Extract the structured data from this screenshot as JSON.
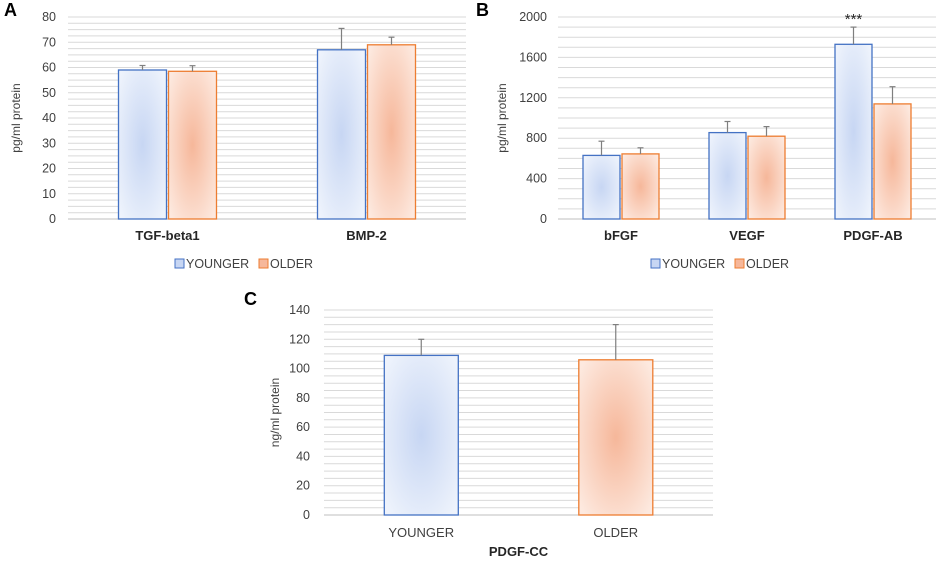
{
  "panels": {
    "A": {
      "letter": "A"
    },
    "B": {
      "letter": "B"
    },
    "C": {
      "letter": "C"
    }
  },
  "colors": {
    "younger_center": "#c7d6f3",
    "younger_edge": "#eef3fc",
    "younger_stroke": "#4472c4",
    "older_center": "#f6b79a",
    "older_edge": "#fde9df",
    "older_stroke": "#ed7d31",
    "grid": "#d9d9d9",
    "error_bar": "#7f7f7f"
  },
  "chart_data": [
    {
      "id": "A",
      "type": "bar",
      "title": "",
      "xlabel": "",
      "ylabel": "pg/ml protein",
      "ylim": [
        0,
        80
      ],
      "yticks": [
        0,
        10,
        20,
        30,
        40,
        50,
        60,
        70,
        80
      ],
      "grid": true,
      "categories": [
        "TGF-beta1",
        "BMP-2"
      ],
      "series": [
        {
          "name": "YOUNGER",
          "values": [
            59,
            67
          ],
          "errors": [
            1.8,
            8.5
          ]
        },
        {
          "name": "OLDER",
          "values": [
            58.5,
            69
          ],
          "errors": [
            2.2,
            3
          ]
        }
      ],
      "legend": [
        "YOUNGER",
        "OLDER"
      ],
      "legend_position": "bottom"
    },
    {
      "id": "B",
      "type": "bar",
      "title": "",
      "xlabel": "",
      "ylabel": "pg/ml protein",
      "ylim": [
        0,
        2000
      ],
      "yticks": [
        0,
        400,
        800,
        1200,
        1600,
        2000
      ],
      "grid": true,
      "categories": [
        "bFGF",
        "VEGF",
        "PDGF-AB"
      ],
      "series": [
        {
          "name": "YOUNGER",
          "values": [
            630,
            855,
            1730
          ],
          "errors": [
            140,
            110,
            170
          ]
        },
        {
          "name": "OLDER",
          "values": [
            645,
            820,
            1140
          ],
          "errors": [
            60,
            95,
            170
          ]
        }
      ],
      "annotations": [
        {
          "text": "***",
          "category": "PDGF-AB",
          "series": "YOUNGER"
        }
      ],
      "legend": [
        "YOUNGER",
        "OLDER"
      ],
      "legend_position": "bottom"
    },
    {
      "id": "C",
      "type": "bar",
      "title": "",
      "xlabel": "PDGF-CC",
      "ylabel": "ng/ml protein",
      "ylim": [
        0,
        140
      ],
      "yticks": [
        0,
        20,
        40,
        60,
        80,
        100,
        120,
        140
      ],
      "grid": true,
      "categories": [
        "YOUNGER",
        "OLDER"
      ],
      "series": [
        {
          "name": "PDGF-CC",
          "values": [
            109,
            106
          ],
          "errors": [
            11,
            24
          ]
        }
      ],
      "legend_position": "none"
    }
  ]
}
